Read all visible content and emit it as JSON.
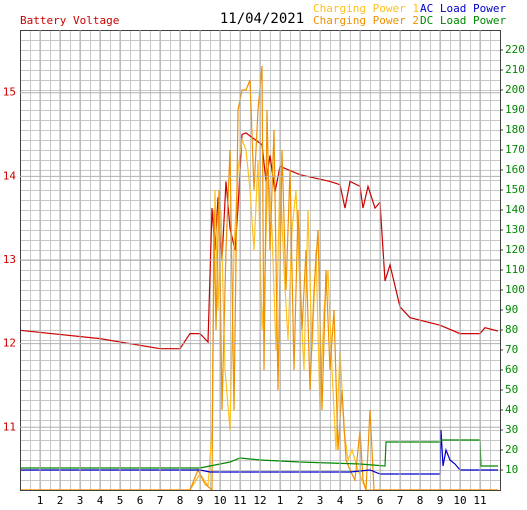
{
  "chart_data": {
    "type": "line",
    "title": "11/04/2021",
    "xlim": [
      0,
      24
    ],
    "xticks": [
      1,
      2,
      3,
      4,
      5,
      6,
      7,
      8,
      9,
      10,
      11,
      12,
      {
        "value": 13,
        "label": "1"
      },
      {
        "value": 14,
        "label": "2"
      },
      {
        "value": 15,
        "label": "3"
      },
      {
        "value": 16,
        "label": "4"
      },
      {
        "value": 17,
        "label": "5"
      },
      {
        "value": 18,
        "label": "6"
      },
      {
        "value": 19,
        "label": "7"
      },
      {
        "value": 20,
        "label": "8"
      },
      {
        "value": 21,
        "label": "9"
      },
      {
        "value": 22,
        "label": "10"
      },
      {
        "value": 23,
        "label": "11"
      }
    ],
    "ylim": [
      10.25,
      15.75
    ],
    "yticks": [
      11,
      12,
      13,
      14,
      15
    ],
    "ycolor": "#cc0000",
    "y2lim": [
      0,
      230
    ],
    "y2ticks": [
      10,
      20,
      30,
      40,
      50,
      60,
      70,
      80,
      90,
      100,
      110,
      120,
      130,
      140,
      150,
      160,
      170,
      180,
      190,
      200,
      210,
      220
    ],
    "y2color": "#008800",
    "grid": true,
    "series": [
      {
        "name": "Battery Voltage",
        "color": "#cc0000",
        "axis": "y",
        "x": [
          0,
          4,
          7,
          8,
          8.5,
          9,
          9.4,
          9.6,
          9.75,
          9.9,
          10.1,
          10.3,
          10.5,
          10.75,
          10.9,
          11.1,
          11.3,
          11.75,
          12.1,
          12.3,
          12.5,
          12.75,
          13,
          14,
          15.5,
          16,
          16.25,
          16.5,
          17,
          17.15,
          17.4,
          17.75,
          18,
          18.25,
          18.5,
          18.75,
          19,
          19.5,
          21,
          22,
          23,
          23.25,
          23.9
        ],
        "values": [
          12.16,
          12.06,
          11.94,
          11.94,
          12.12,
          12.12,
          12.02,
          13.62,
          13.12,
          13.75,
          13.0,
          13.94,
          13.38,
          13.12,
          13.62,
          14.5,
          14.52,
          14.44,
          14.38,
          13.94,
          14.25,
          13.81,
          14.12,
          14.02,
          13.94,
          13.9,
          13.62,
          13.94,
          13.88,
          13.62,
          13.88,
          13.62,
          13.69,
          12.75,
          12.94,
          12.69,
          12.44,
          12.31,
          12.22,
          12.12,
          12.12,
          12.19,
          12.15
        ]
      },
      {
        "name": "Charging Power 1",
        "color": "#ffc020",
        "axis": "y2",
        "x": [
          0,
          8.5,
          9,
          9.4,
          9.6,
          9.75,
          9.9,
          10.05,
          10.25,
          10.5,
          10.7,
          10.9,
          11.1,
          11.3,
          11.5,
          11.7,
          11.9,
          12.1,
          12.25,
          12.4,
          12.6,
          12.8,
          13,
          13.2,
          13.4,
          13.6,
          13.8,
          14,
          14.2,
          14.4,
          14.6,
          14.8,
          15,
          15.2,
          15.4,
          15.6,
          15.8,
          16,
          16.2,
          16.4,
          16.6,
          16.9,
          17.1,
          17.3,
          23.9
        ],
        "values": [
          0,
          0,
          8,
          2,
          30,
          150,
          90,
          140,
          60,
          30,
          120,
          160,
          175,
          170,
          150,
          120,
          165,
          80,
          110,
          160,
          130,
          70,
          160,
          110,
          75,
          130,
          150,
          100,
          60,
          140,
          70,
          120,
          40,
          90,
          110,
          60,
          20,
          70,
          30,
          15,
          20,
          10,
          5,
          0,
          0
        ]
      },
      {
        "name": "Charging Power 2",
        "color": "#f09000",
        "axis": "y2",
        "x": [
          0,
          8.5,
          8.9,
          9.25,
          9.6,
          9.7,
          9.8,
          9.95,
          10.1,
          10.3,
          10.5,
          10.7,
          10.9,
          11.1,
          11.3,
          11.5,
          11.7,
          11.9,
          12.1,
          12.2,
          12.35,
          12.5,
          12.7,
          12.9,
          13.1,
          13.3,
          13.5,
          13.7,
          13.9,
          14.1,
          14.3,
          14.5,
          14.7,
          14.9,
          15.1,
          15.3,
          15.5,
          15.7,
          15.9,
          16.1,
          16.3,
          16.5,
          16.75,
          17,
          17.15,
          17.3,
          17.5,
          17.7,
          23.9
        ],
        "values": [
          0,
          0,
          10,
          3,
          0,
          140,
          80,
          150,
          40,
          120,
          170,
          40,
          190,
          200,
          200,
          205,
          150,
          190,
          212,
          60,
          190,
          120,
          180,
          50,
          170,
          100,
          160,
          60,
          140,
          80,
          120,
          50,
          100,
          130,
          40,
          110,
          60,
          90,
          20,
          50,
          15,
          10,
          5,
          30,
          5,
          0,
          40,
          0,
          0
        ]
      },
      {
        "name": "AC Load Power",
        "color": "#0000cc",
        "axis": "y2",
        "x": [
          0,
          9,
          9.5,
          16.5,
          17.5,
          18,
          21,
          21.05,
          21.15,
          21.3,
          21.5,
          21.75,
          22,
          23.9
        ],
        "values": [
          10,
          10,
          9,
          9,
          10,
          8,
          8,
          30,
          12,
          20,
          15,
          13,
          10,
          10
        ]
      },
      {
        "name": "DC Load Power",
        "color": "#008800",
        "axis": "y2",
        "x": [
          0,
          9,
          10.5,
          11,
          12,
          14,
          17,
          18.25,
          18.3,
          21,
          21.05,
          23,
          23.05,
          23.9
        ],
        "values": [
          11,
          11,
          14,
          16,
          15,
          14,
          13,
          12,
          24,
          24,
          25,
          25,
          12,
          12
        ]
      }
    ]
  }
}
